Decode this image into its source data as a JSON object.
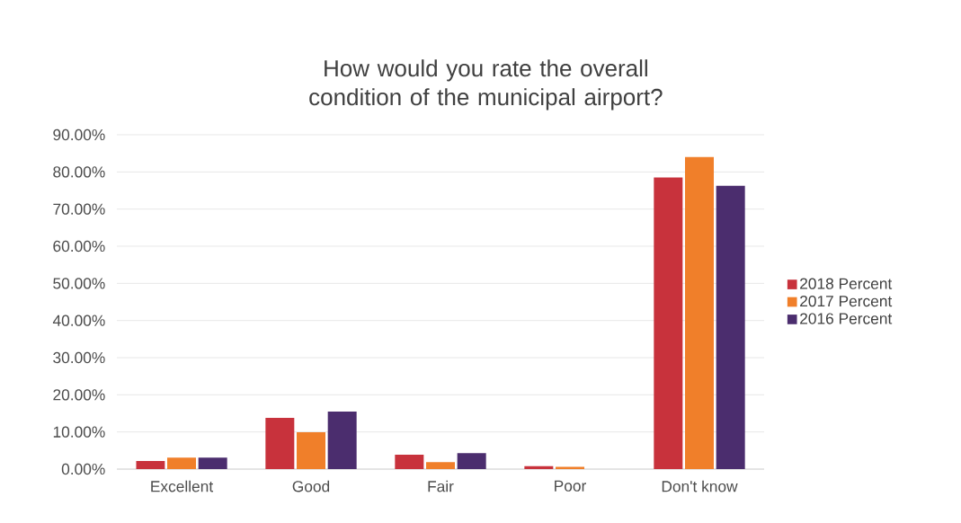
{
  "chart_data": {
    "type": "bar",
    "title": "How would you rate the overall condition of the municipal airport?",
    "categories": [
      "Excellent",
      "Good",
      "Fair",
      "Poor",
      "Don't know"
    ],
    "series": [
      {
        "name": "2018 Percent",
        "color": "#c8323c",
        "values": [
          2.2,
          13.8,
          3.9,
          0.8,
          78.5
        ]
      },
      {
        "name": "2017 Percent",
        "color": "#f07f2a",
        "values": [
          3.1,
          9.9,
          1.9,
          0.6,
          84.0
        ]
      },
      {
        "name": "2016 Percent",
        "color": "#4b2d6e",
        "values": [
          3.1,
          15.5,
          4.3,
          null,
          76.3
        ]
      }
    ],
    "ylim": [
      0,
      90
    ],
    "yticks": [
      {
        "value": 0,
        "label": "0.00%"
      },
      {
        "value": 10,
        "label": "10.00%"
      },
      {
        "value": 20,
        "label": "20.00%"
      },
      {
        "value": 30,
        "label": "30.00%"
      },
      {
        "value": 40,
        "label": "40.00%"
      },
      {
        "value": 50,
        "label": "50.00%"
      },
      {
        "value": 60,
        "label": "60.00%"
      },
      {
        "value": 70,
        "label": "70.00%"
      },
      {
        "value": 80,
        "label": "80.00%"
      },
      {
        "value": 90,
        "label": "90.00%"
      }
    ],
    "grid": "y",
    "legend": "right"
  }
}
